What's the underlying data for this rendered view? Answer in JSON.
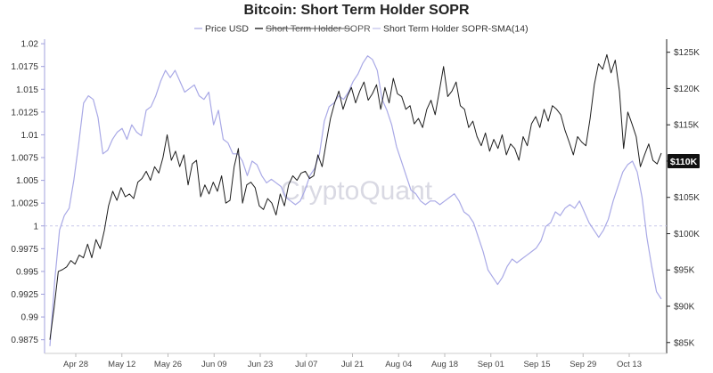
{
  "chart_data": {
    "type": "line",
    "title": "Bitcoin: Short Term Holder SOPR",
    "watermark": "CryptoQuant",
    "legend": [
      {
        "name": "Price USD",
        "color": "#b3b3e6",
        "hidden": false
      },
      {
        "name": "Short Term Holder SOPR",
        "color": "#222222",
        "hidden": true
      },
      {
        "name": "Short Term Holder SOPR-SMA(14)",
        "color": "#c9c9ee",
        "hidden": false
      }
    ],
    "x_tick_labels": [
      "Apr 28",
      "May 12",
      "May 26",
      "Jun 09",
      "Jun 23",
      "Jul 07",
      "Jul 21",
      "Aug 04",
      "Aug 18",
      "Sep 01",
      "Sep 15",
      "Sep 29",
      "Oct 13"
    ],
    "y_left": {
      "ticks": [
        "1.02",
        "1.0175",
        "1.015",
        "1.0125",
        "1.01",
        "1.0075",
        "1.005",
        "1.0025",
        "1",
        "0.9975",
        "0.995",
        "0.9925",
        "0.99",
        "0.9875"
      ],
      "range": [
        0.986,
        1.0205
      ],
      "reference_line": 1
    },
    "y_right": {
      "ticks": [
        "$125K",
        "$120K",
        "$115K",
        "$110K",
        "$105K",
        "$100K",
        "$95K",
        "$90K",
        "$85K"
      ],
      "range": [
        83500,
        126800
      ],
      "current_price_label": "$110K",
      "current_price": 110000
    },
    "price_color": "#a9a9e6",
    "sopr_color": "#1e1e1e",
    "series": [
      {
        "name": "Price USD",
        "axis": "right",
        "values": [
          84500,
          93500,
          100500,
          102500,
          103500,
          107500,
          112500,
          118000,
          119000,
          118500,
          116000,
          111000,
          111500,
          113000,
          114000,
          114500,
          113000,
          115000,
          114000,
          113500,
          117000,
          117500,
          119000,
          121000,
          122500,
          121500,
          122500,
          121000,
          119500,
          120000,
          120500,
          119000,
          118500,
          119500,
          115000,
          117000,
          113000,
          112500,
          111000,
          111000,
          110000,
          108000,
          110000,
          109500,
          108000,
          107000,
          107500,
          107000,
          106500,
          105000,
          104500,
          104000,
          104500,
          106000,
          108000,
          109000,
          111000,
          115500,
          117500,
          118000,
          119000,
          118500,
          119500,
          121000,
          122000,
          123500,
          124500,
          124000,
          122500,
          118500,
          117000,
          115000,
          112000,
          110000,
          108000,
          106000,
          105500,
          104500,
          104000,
          104500,
          104500,
          104000,
          104500,
          105000,
          105500,
          104500,
          103000,
          102500,
          101500,
          99500,
          97500,
          95000,
          94000,
          93000,
          94000,
          95500,
          96500,
          96000,
          96500,
          97000,
          97500,
          98000,
          99000,
          101000,
          101500,
          103000,
          102500,
          103500,
          104000,
          103500,
          104500,
          103000,
          101500,
          100500,
          99500,
          100500,
          102000,
          104500,
          106500,
          108500,
          109500,
          110000,
          108500,
          105000,
          99500,
          95500,
          92000,
          91000
        ]
      },
      {
        "name": "Short Term Holder SOPR",
        "axis": "left",
        "values": [
          0.9875,
          0.991,
          0.995,
          0.9952,
          0.9955,
          0.9962,
          0.9958,
          0.9968,
          0.9965,
          0.998,
          0.9965,
          0.9985,
          0.9975,
          0.9995,
          1.0022,
          1.0038,
          1.0028,
          1.0042,
          1.0032,
          1.0035,
          1.003,
          1.0048,
          1.0052,
          1.006,
          1.005,
          1.0065,
          1.0058,
          1.0075,
          1.01,
          1.0072,
          1.0082,
          1.0065,
          1.0078,
          1.0045,
          1.0068,
          1.0072,
          1.0032,
          1.0045,
          1.0035,
          1.0048,
          1.0038,
          1.0055,
          1.0025,
          1.0028,
          1.0065,
          1.0085,
          1.0025,
          1.0045,
          1.0048,
          1.0042,
          1.0022,
          1.0018,
          1.003,
          1.0025,
          1.0012,
          1.0035,
          1.0022,
          1.0045,
          1.0055,
          1.005,
          1.0058,
          1.006,
          1.0052,
          1.0055,
          1.0078,
          1.0065,
          1.0092,
          1.0118,
          1.0135,
          1.0148,
          1.0128,
          1.0142,
          1.0152,
          1.0135,
          1.0148,
          1.0158,
          1.0138,
          1.0145,
          1.0155,
          1.0128,
          1.0152,
          1.0135,
          1.0162,
          1.0145,
          1.0142,
          1.0128,
          1.0132,
          1.0112,
          1.0118,
          1.0108,
          1.0128,
          1.0138,
          1.0122,
          1.0148,
          1.0175,
          1.0142,
          1.0148,
          1.0158,
          1.0132,
          1.0128,
          1.0108,
          1.0115,
          1.0098,
          1.0088,
          1.0102,
          1.0082,
          1.0095,
          1.0085,
          1.01,
          1.0078,
          1.009,
          1.0085,
          1.0072,
          1.0098,
          1.0088,
          1.0112,
          1.012,
          1.0108,
          1.0128,
          1.0115,
          1.0132,
          1.0128,
          1.0122,
          1.0105,
          1.0092,
          1.0078,
          1.0098,
          1.0092,
          1.0088,
          1.0118,
          1.0155,
          1.0178,
          1.0172,
          1.0188,
          1.0168,
          1.0182,
          1.0148,
          1.0085,
          1.0125,
          1.0112,
          1.0098,
          1.0065,
          1.0078,
          1.009,
          1.0072,
          1.0068,
          1.008
        ]
      }
    ]
  }
}
